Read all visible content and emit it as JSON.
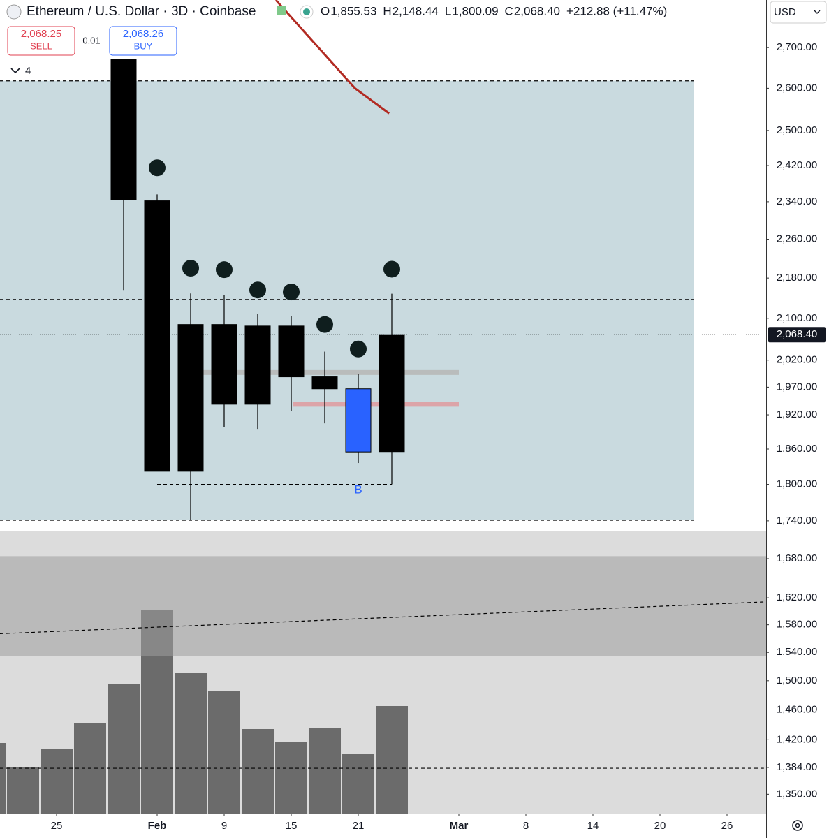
{
  "header": {
    "symbol": "Ethereum / U.S. Dollar · 3D · Coinbase",
    "ohlc": [
      {
        "key": "O",
        "value": "1,855.53"
      },
      {
        "key": "H",
        "value": "2,148.44"
      },
      {
        "key": "L",
        "value": "1,800.09"
      },
      {
        "key": "C",
        "value": "2,068.40"
      }
    ],
    "change": "+212.88 (+11.47%)"
  },
  "trade": {
    "sell_price": "2,068.25",
    "sell_label": "SELL",
    "spread": "0.01",
    "buy_price": "2,068.26",
    "buy_label": "BUY"
  },
  "indicators_count": "4",
  "currency": "USD",
  "chart_data": {
    "type": "candlestick",
    "log_scale": true,
    "xlim": [
      -1.6875,
      21.1667
    ],
    "ylim": [
      1326,
      2822
    ],
    "xticks": [
      {
        "value": 0,
        "label": "25"
      },
      {
        "value": 3,
        "label": "Feb"
      },
      {
        "value": 5,
        "label": "9"
      },
      {
        "value": 7,
        "label": "15"
      },
      {
        "value": 9,
        "label": "21"
      },
      {
        "value": 12,
        "label": "Mar"
      },
      {
        "value": 14,
        "label": "8"
      },
      {
        "value": 16,
        "label": "14"
      },
      {
        "value": 18,
        "label": "20"
      },
      {
        "value": 20,
        "label": "26"
      }
    ],
    "yticks": [
      {
        "value": 2700,
        "label": "2,700.00"
      },
      {
        "value": 2600,
        "label": "2,600.00"
      },
      {
        "value": 2500,
        "label": "2,500.00"
      },
      {
        "value": 2420,
        "label": "2,420.00"
      },
      {
        "value": 2340,
        "label": "2,340.00"
      },
      {
        "value": 2260,
        "label": "2,260.00"
      },
      {
        "value": 2180,
        "label": "2,180.00"
      },
      {
        "value": 2100,
        "label": "2,100.00"
      },
      {
        "value": 2020,
        "label": "2,020.00"
      },
      {
        "value": 1970,
        "label": "1,970.00"
      },
      {
        "value": 1920,
        "label": "1,920.00"
      },
      {
        "value": 1860,
        "label": "1,860.00"
      },
      {
        "value": 1800,
        "label": "1,800.00"
      },
      {
        "value": 1740,
        "label": "1,740.00"
      },
      {
        "value": 1680,
        "label": "1,680.00"
      },
      {
        "value": 1620,
        "label": "1,620.00"
      },
      {
        "value": 1580,
        "label": "1,580.00"
      },
      {
        "value": 1540,
        "label": "1,540.00"
      },
      {
        "value": 1500,
        "label": "1,500.00"
      },
      {
        "value": 1460,
        "label": "1,460.00"
      },
      {
        "value": 1420,
        "label": "1,420.00"
      },
      {
        "value": 1384,
        "label": "1,384.00"
      },
      {
        "value": 1350,
        "label": "1,350.00"
      }
    ],
    "x": [
      2,
      3,
      4,
      5,
      6,
      7,
      8,
      9,
      10
    ],
    "open": [
      2671,
      2342,
      1822,
      2088,
      1939,
      2085,
      1989,
      1967,
      1855.53
    ],
    "high": [
      2671,
      2356,
      2149,
      2146,
      2108,
      2104,
      2036,
      1994,
      2148.44
    ],
    "low": [
      2156,
      1822,
      1742,
      1899,
      1894,
      1927,
      1905,
      1836,
      1800.09
    ],
    "close": [
      2344,
      1822,
      2088,
      1939,
      2085,
      1989,
      1967,
      1855,
      2068.4
    ],
    "colors": [
      "#000000",
      "#000000",
      "#000000",
      "#000000",
      "#000000",
      "#000000",
      "#000000",
      "#2962ff",
      "#000000"
    ],
    "last_price": {
      "value": 2068.4,
      "label": "2,068.40"
    },
    "markers": {
      "x": [
        3,
        4,
        5,
        6,
        7,
        8,
        9,
        10
      ],
      "values": [
        2415,
        2200,
        2197,
        2156,
        2152,
        2088,
        2041,
        2198
      ],
      "color": "#0f1e1e"
    },
    "signal": {
      "x": 9,
      "value": 1790,
      "label": "B",
      "color": "#2962ff"
    },
    "zone": {
      "xlim": [
        -1.6875,
        19
      ],
      "ylim": [
        1741,
        2618
      ],
      "color": "#c9dadf"
    },
    "band": {
      "ylim": [
        1535,
        1684
      ],
      "color": "#9e9e9e"
    },
    "levels": [
      {
        "value": 2618,
        "xlim": [
          -1.6875,
          19
        ]
      },
      {
        "value": 2137,
        "xlim": [
          -1.6875,
          19
        ]
      },
      {
        "value": 1741,
        "xlim": [
          -1.6875,
          19
        ]
      },
      {
        "value": 1800,
        "xlim": [
          3,
          10
        ]
      },
      {
        "value": 1383,
        "xlim": [
          -1.6875,
          21.1
        ]
      }
    ],
    "segments": [
      {
        "value": 1997,
        "xlim": [
          4.35,
          12
        ],
        "color": "#b9bcbc"
      },
      {
        "value": 1939,
        "xlim": [
          7.06,
          12
        ],
        "color": "#dca4a8"
      }
    ],
    "trend": {
      "x": [
        -1.6875,
        21.1667
      ],
      "values": [
        1567,
        1614
      ]
    },
    "red_line": {
      "x": [
        6.54,
        8.9,
        9.92
      ],
      "values": [
        2822,
        2600,
        2540
      ],
      "color": "#b22a22"
    },
    "volume": {
      "ylim": [
        0,
        400
      ],
      "x": [
        -2,
        -1,
        0,
        1,
        2,
        3,
        4,
        5,
        6,
        7,
        8,
        9,
        10
      ],
      "values": [
        101,
        67,
        93,
        130,
        185,
        292,
        201,
        176,
        121,
        102,
        122,
        86,
        154
      ],
      "color": "#6b6b6b"
    }
  }
}
